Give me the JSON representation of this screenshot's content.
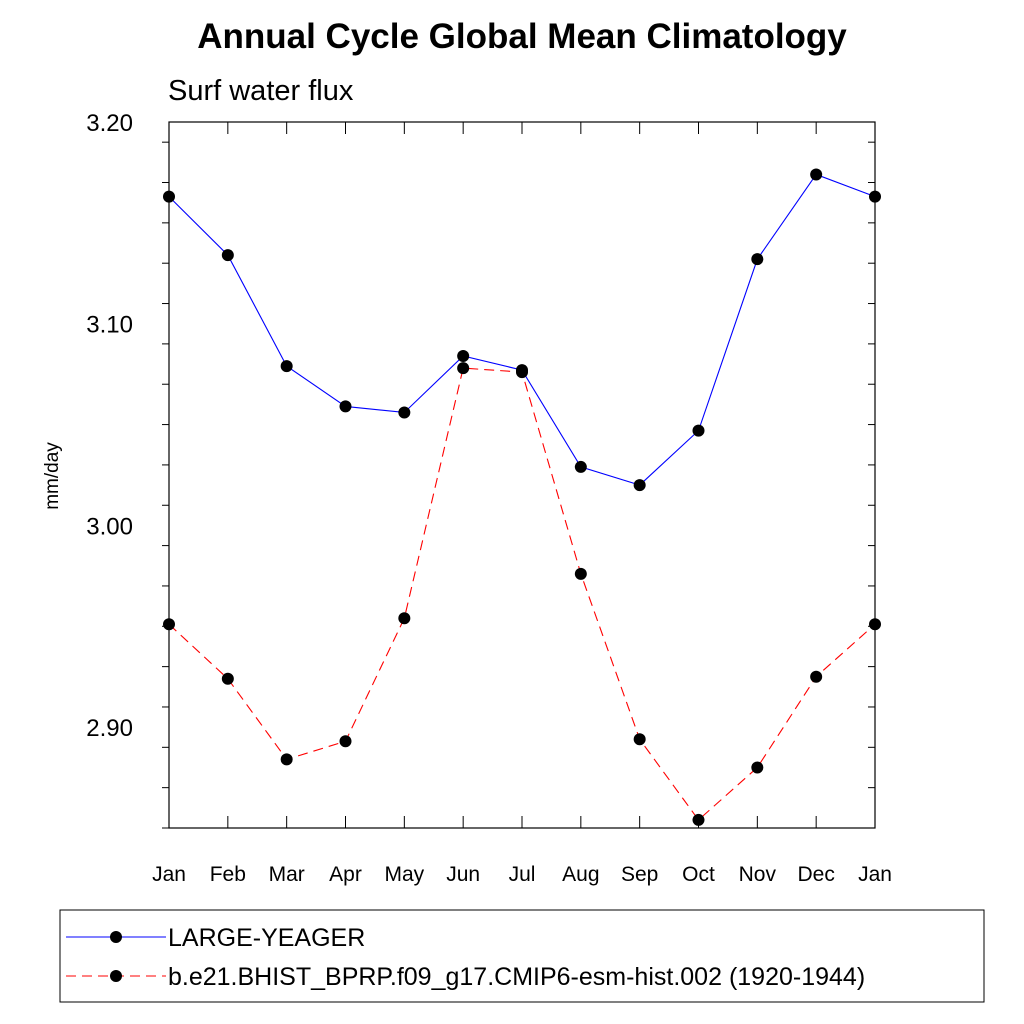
{
  "chart_data": {
    "type": "line",
    "title": "Annual Cycle Global Mean Climatology",
    "subtitle": "Surf water flux",
    "xlabel": "",
    "ylabel": "mm/day",
    "categories": [
      "Jan",
      "Feb",
      "Mar",
      "Apr",
      "May",
      "Jun",
      "Jul",
      "Aug",
      "Sep",
      "Oct",
      "Nov",
      "Dec",
      "Jan"
    ],
    "ylim": [
      2.85,
      3.2
    ],
    "yticks": [
      "3.20",
      "3.10",
      "3.00",
      "2.90"
    ],
    "ytick_values": [
      3.2,
      3.1,
      3.0,
      2.9
    ],
    "grid": false,
    "legend_position": "bottom",
    "series": [
      {
        "name": "LARGE-YEAGER",
        "color": "#0000ff",
        "line_style": "solid",
        "marker": "filled-circle",
        "values": [
          3.163,
          3.134,
          3.079,
          3.059,
          3.056,
          3.084,
          3.077,
          3.029,
          3.02,
          3.047,
          3.132,
          3.174,
          3.163
        ]
      },
      {
        "name": "b.e21.BHIST_BPRP.f09_g17.CMIP6-esm-hist.002 (1920-1944)",
        "color": "#ff0000",
        "line_style": "dashed",
        "marker": "filled-circle",
        "values": [
          2.951,
          2.924,
          2.884,
          2.893,
          2.954,
          3.078,
          3.076,
          2.976,
          2.894,
          2.854,
          2.88,
          2.925,
          2.951
        ]
      }
    ]
  }
}
